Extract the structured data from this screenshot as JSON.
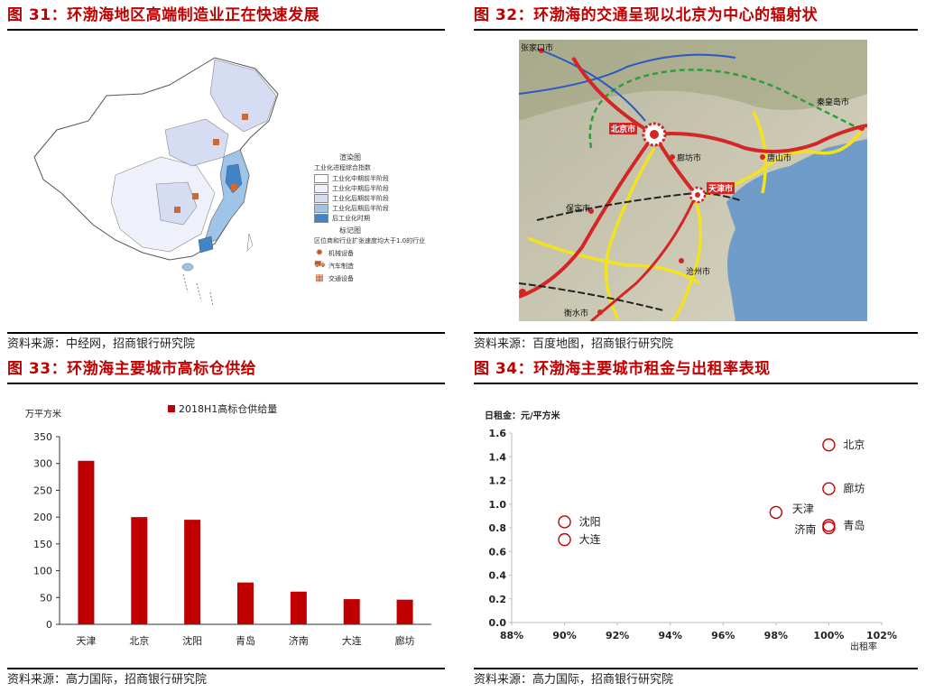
{
  "panels": {
    "p31": {
      "title": "图 31：环渤海地区高端制造业正在快速发展",
      "source": "资料来源：中经网，招商银行研究院",
      "legend": {
        "heading": "渲染图",
        "subheading": "工业化进程综合指数",
        "items": [
          {
            "label": "工业化中期前半阶段",
            "color": "#ffffff"
          },
          {
            "label": "工业化中期后半阶段",
            "color": "#eef0fa"
          },
          {
            "label": "工业化后期前半阶段",
            "color": "#d6dcf2"
          },
          {
            "label": "工业化后期后半阶段",
            "color": "#9fc4e8"
          },
          {
            "label": "后工业化时期",
            "color": "#3f85c8"
          }
        ],
        "marker_heading": "标记图",
        "marker_subheading": "区位商和行业扩张速度均大于1.0的行业",
        "markers": [
          {
            "label": "机械设备",
            "icon": "gear-icon"
          },
          {
            "label": "汽车制造",
            "icon": "car-icon"
          },
          {
            "label": "交通设备",
            "icon": "train-icon"
          }
        ]
      }
    },
    "p32": {
      "title": "图 32：环渤海的交通呈现以北京为中心的辐射状",
      "source": "资料来源：百度地图，招商银行研究院",
      "cities": [
        "张家口市",
        "秦皇岛市",
        "北京市",
        "廊坊市",
        "唐山市",
        "天津市",
        "保定市",
        "沧州市",
        "衡水市"
      ]
    },
    "p33": {
      "title": "图 33：环渤海主要城市高标仓供给",
      "source": "资料来源：高力国际，招商银行研究院"
    },
    "p34": {
      "title": "图 34：环渤海主要城市租金与出租率表现",
      "source": "资料来源：高力国际，招商银行研究院"
    }
  },
  "colors": {
    "title_red": "#c00000",
    "bar_red": "#c00000",
    "scatter_red": "#c00000"
  },
  "chart_data": [
    {
      "id": "p33",
      "type": "bar",
      "categories": [
        "天津",
        "北京",
        "沈阳",
        "青岛",
        "济南",
        "大连",
        "廊坊"
      ],
      "series": [
        {
          "name": "2018H1高标仓供给量",
          "values": [
            305,
            200,
            195,
            78,
            61,
            47,
            46
          ]
        }
      ],
      "ylabel": "万平方米",
      "ylim": [
        0,
        350
      ],
      "yticks": [
        0,
        50,
        100,
        150,
        200,
        250,
        300,
        350
      ],
      "legend": "top"
    },
    {
      "id": "p34",
      "type": "scatter",
      "ylabel": "日租金：元/平方米",
      "xlabel": "出租率",
      "xlim": [
        0.88,
        1.02
      ],
      "ylim": [
        0.0,
        1.6
      ],
      "xticks": [
        "88%",
        "90%",
        "92%",
        "94%",
        "96%",
        "98%",
        "100%",
        "102%"
      ],
      "yticks": [
        "0.0",
        "0.2",
        "0.4",
        "0.6",
        "0.8",
        "1.0",
        "1.2",
        "1.4",
        "1.6"
      ],
      "points": [
        {
          "label": "北京",
          "x": 1.0,
          "y": 1.5
        },
        {
          "label": "廊坊",
          "x": 1.0,
          "y": 1.13
        },
        {
          "label": "天津",
          "x": 0.98,
          "y": 0.93
        },
        {
          "label": "沈阳",
          "x": 0.9,
          "y": 0.85
        },
        {
          "label": "青岛",
          "x": 1.0,
          "y": 0.82
        },
        {
          "label": "济南",
          "x": 1.0,
          "y": 0.8
        },
        {
          "label": "大连",
          "x": 0.9,
          "y": 0.7
        }
      ]
    }
  ]
}
